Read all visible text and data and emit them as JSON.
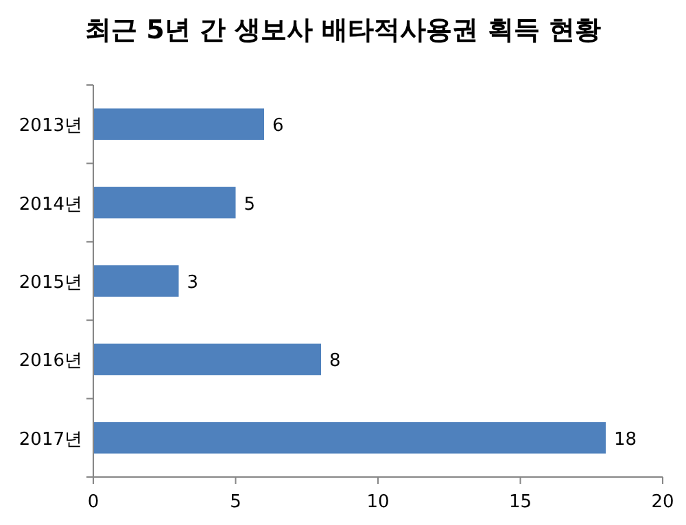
{
  "chart_data": {
    "type": "bar",
    "orientation": "horizontal",
    "title": "최근 5년 간 생보사 배타적사용권 획득 현황",
    "categories": [
      "2013년",
      "2014년",
      "2015년",
      "2016년",
      "2017년"
    ],
    "values": [
      6,
      5,
      3,
      8,
      18
    ],
    "color": "#4f81bd",
    "xlim": [
      0,
      20
    ],
    "xticks": [
      0,
      5,
      10,
      15,
      20
    ],
    "data_labels": true,
    "grid": false
  }
}
